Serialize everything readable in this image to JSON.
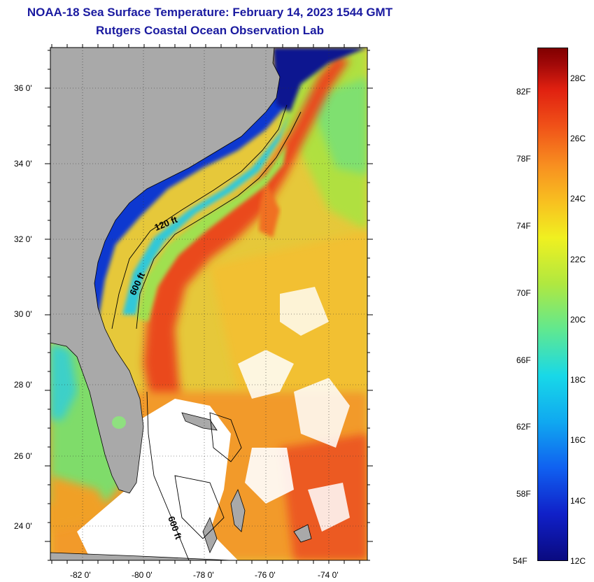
{
  "title": {
    "line1": "NOAA-18 Sea Surface Temperature:  February 14, 2023 1544 GMT",
    "line2": "Rutgers Coastal Ocean Observation Lab"
  },
  "map": {
    "lon_ticks": [
      "-82 0'",
      "-80 0'",
      "-78 0'",
      "-76 0'",
      "-74 0'"
    ],
    "lat_ticks": [
      "36 0'",
      "34 0'",
      "32 0'",
      "30 0'",
      "28 0'",
      "26 0'",
      "24 0'"
    ],
    "contour_labels": [
      "120 ft",
      "600 ft",
      "600 ft"
    ],
    "colors": {
      "land": "#a8a8a8",
      "cloud": "#ffffff",
      "gulf_stream": "#e8381c",
      "warm": "#f6a020",
      "mild": "#e8e03a",
      "cool": "#39d6c8",
      "cold": "#1030c8",
      "coldest": "#050a80"
    }
  },
  "colorbar": {
    "fahrenheit": [
      "82F",
      "78F",
      "74F",
      "70F",
      "66F",
      "62F",
      "58F",
      "54F"
    ],
    "celsius": [
      "28C",
      "26C",
      "24C",
      "22C",
      "20C",
      "18C",
      "16C",
      "14C",
      "12C"
    ],
    "range_c": [
      12,
      29
    ]
  }
}
